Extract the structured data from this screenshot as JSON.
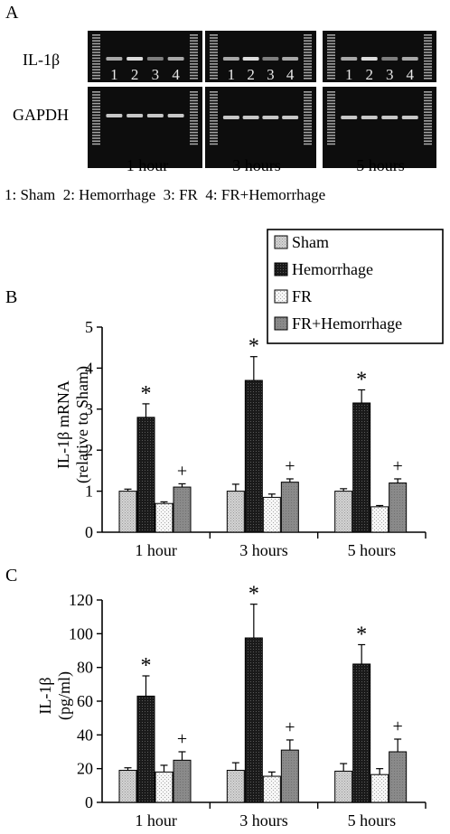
{
  "panels": {
    "a": "A",
    "b": "B",
    "c": "C"
  },
  "gel": {
    "row_labels": [
      "IL-1β",
      "GAPDH"
    ],
    "lane_numbers": [
      "1",
      "2",
      "3",
      "4"
    ],
    "timepoints": [
      "1 hour",
      "3 hours",
      "5 hours"
    ],
    "key": "1: Sham  2: Hemorrhage  3: FR  4: FR+Hemorrhage"
  },
  "legend": {
    "entries": [
      "Sham",
      "Hemorrhage",
      "FR",
      "FR+Hemorrhage"
    ]
  },
  "colors": {
    "sham": "#d9d9d9",
    "hemorrhage": "#1c1c1c",
    "fr": "#f4f4f4",
    "fr_hemorrhage": "#8c8c8c",
    "gel_background": "#0d0d0d",
    "band": "#dcdcdc"
  },
  "chart_data": [
    {
      "type": "bar",
      "panel": "B",
      "categories": [
        "1 hour",
        "3 hours",
        "5 hours"
      ],
      "ylabel": [
        "IL-1β mRNA",
        "(relative to Sham)"
      ],
      "ylim": [
        0,
        5
      ],
      "yticks": [
        0,
        1,
        2,
        3,
        4,
        5
      ],
      "series": [
        {
          "name": "Sham",
          "values": [
            1.0,
            1.0,
            1.0
          ],
          "errors": [
            0.05,
            0.17,
            0.06
          ]
        },
        {
          "name": "Hemorrhage",
          "values": [
            2.8,
            3.7,
            3.15
          ],
          "errors": [
            0.33,
            0.58,
            0.32
          ]
        },
        {
          "name": "FR",
          "values": [
            0.7,
            0.85,
            0.62
          ],
          "errors": [
            0.04,
            0.08,
            0.03
          ]
        },
        {
          "name": "FR+Hemorrhage",
          "values": [
            1.1,
            1.22,
            1.2
          ],
          "errors": [
            0.08,
            0.08,
            0.1
          ]
        }
      ],
      "markers": [
        {
          "series": "Hemorrhage",
          "symbols": [
            "*",
            "*",
            "*"
          ]
        },
        {
          "series": "FR+Hemorrhage",
          "symbols": [
            "+",
            "+",
            "+"
          ]
        }
      ],
      "legend": "top-right"
    },
    {
      "type": "bar",
      "panel": "C",
      "categories": [
        "1 hour",
        "3 hours",
        "5 hours"
      ],
      "ylabel": [
        "IL-1β",
        "(pg/ml)"
      ],
      "ylim": [
        0,
        120
      ],
      "yticks": [
        0,
        20,
        40,
        60,
        80,
        100,
        120
      ],
      "series": [
        {
          "name": "Sham",
          "values": [
            19,
            19,
            18.5
          ],
          "errors": [
            1.5,
            4.5,
            4.5
          ]
        },
        {
          "name": "Hemorrhage",
          "values": [
            63,
            97.5,
            82
          ],
          "errors": [
            12,
            20,
            11.5
          ]
        },
        {
          "name": "FR",
          "values": [
            18,
            15.5,
            16.5
          ],
          "errors": [
            4,
            2.5,
            3.5
          ]
        },
        {
          "name": "FR+Hemorrhage",
          "values": [
            25,
            31,
            30
          ],
          "errors": [
            5,
            6,
            7.5
          ]
        }
      ],
      "markers": [
        {
          "series": "Hemorrhage",
          "symbols": [
            "*",
            "*",
            "*"
          ]
        },
        {
          "series": "FR+Hemorrhage",
          "symbols": [
            "+",
            "+",
            "+"
          ]
        }
      ]
    }
  ]
}
